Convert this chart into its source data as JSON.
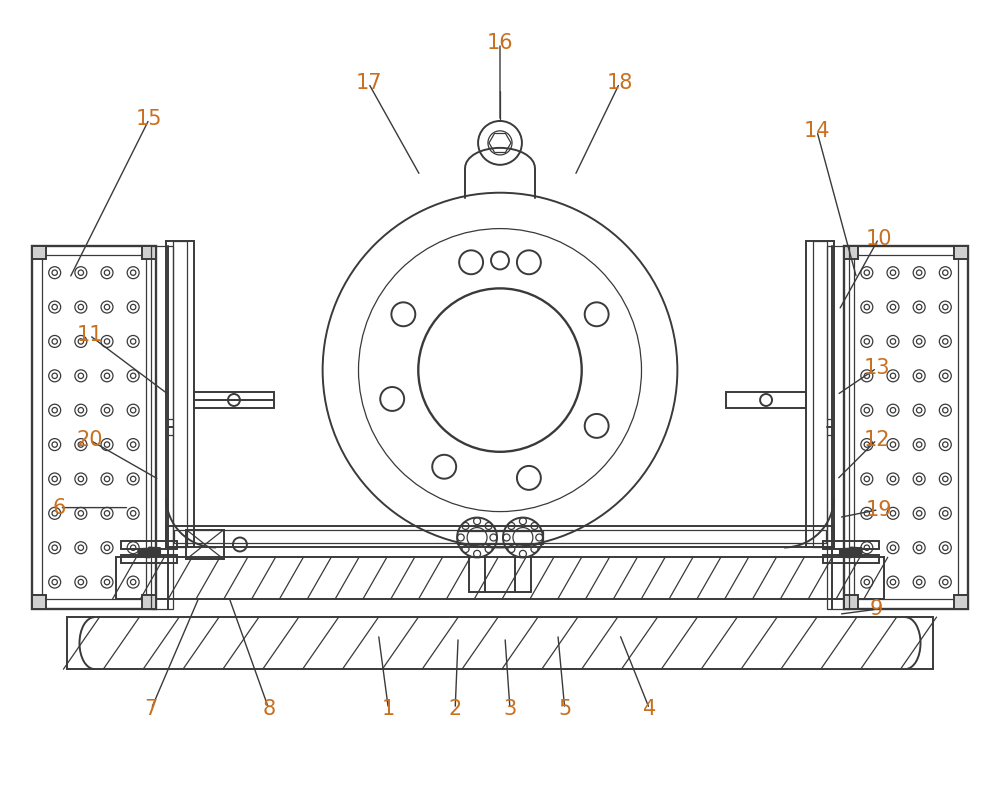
{
  "bg_color": "#ffffff",
  "line_color": "#3a3a3a",
  "line_width": 1.4,
  "thin_line": 0.9,
  "label_color": "#c87020",
  "label_fontsize": 15,
  "fig_width": 10.0,
  "fig_height": 7.92
}
